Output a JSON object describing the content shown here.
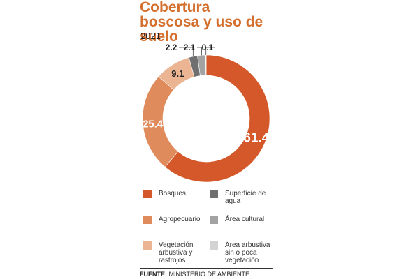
{
  "chart_data": {
    "type": "donut",
    "title": "Cobertura boscosa y uso de suelo",
    "subtitle": "2021",
    "categories": [
      "Bosques",
      "Agropecuario",
      "Vegetación arbustiva y rastrojos",
      "Superficie de agua",
      "Área cultural",
      "Área arbustiva sin o poca vegetación"
    ],
    "values": [
      61.4,
      25.4,
      9.1,
      2.2,
      2.1,
      0.1
    ],
    "colors": [
      "#d4582a",
      "#e08b5c",
      "#ebb492",
      "#6f6f6f",
      "#a3a3a3",
      "#d3d3d3"
    ],
    "source_label": "FUENTE:",
    "source": "MINISTERIO DE AMBIENTE"
  }
}
